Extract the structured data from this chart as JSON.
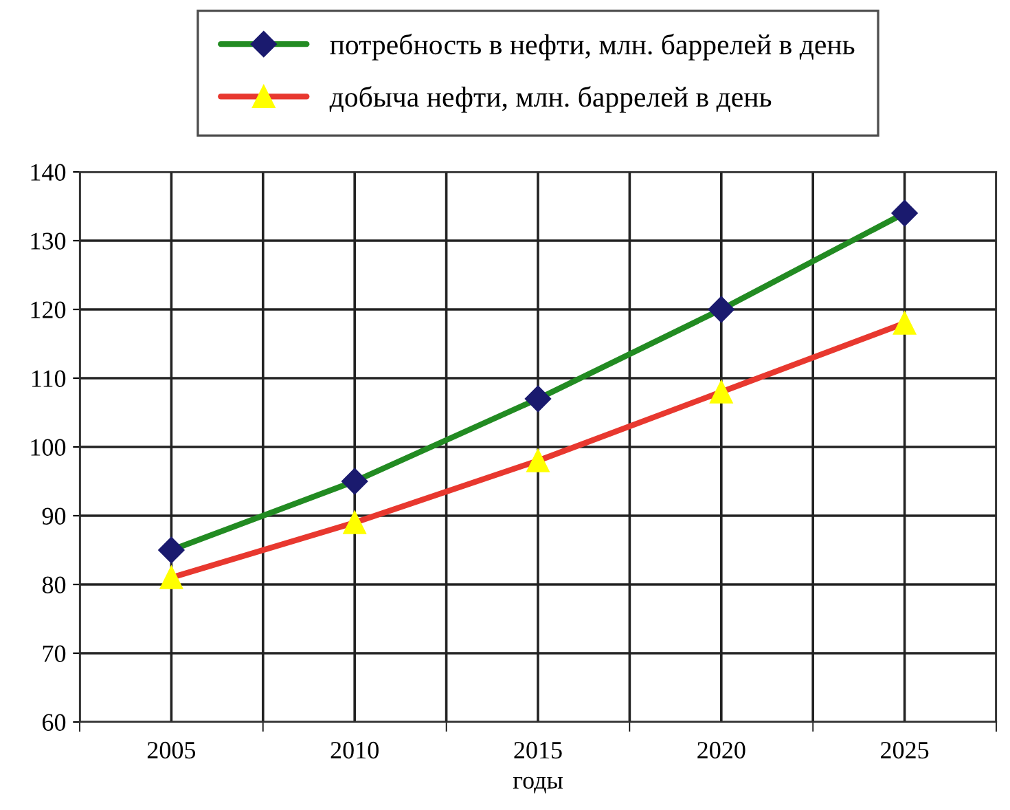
{
  "chart_data": {
    "type": "line",
    "xlabel": "годы",
    "categories": [
      "2005",
      "2010",
      "2015",
      "2020",
      "2025"
    ],
    "series": [
      {
        "name": "потребность в нефти, млн. баррелей в день",
        "color": "#228b22",
        "marker": "diamond",
        "values": [
          85,
          95,
          107,
          120,
          134
        ]
      },
      {
        "name": "добыча нефти, млн. баррелей в день",
        "color": "#e8382f",
        "marker": "triangle",
        "values": [
          81,
          89,
          98,
          108,
          118
        ]
      }
    ],
    "ylim": [
      60,
      140
    ],
    "yticks": [
      60,
      70,
      80,
      90,
      100,
      110,
      120,
      130,
      140
    ],
    "grid": true,
    "legend": "top",
    "line_style": "solid"
  }
}
